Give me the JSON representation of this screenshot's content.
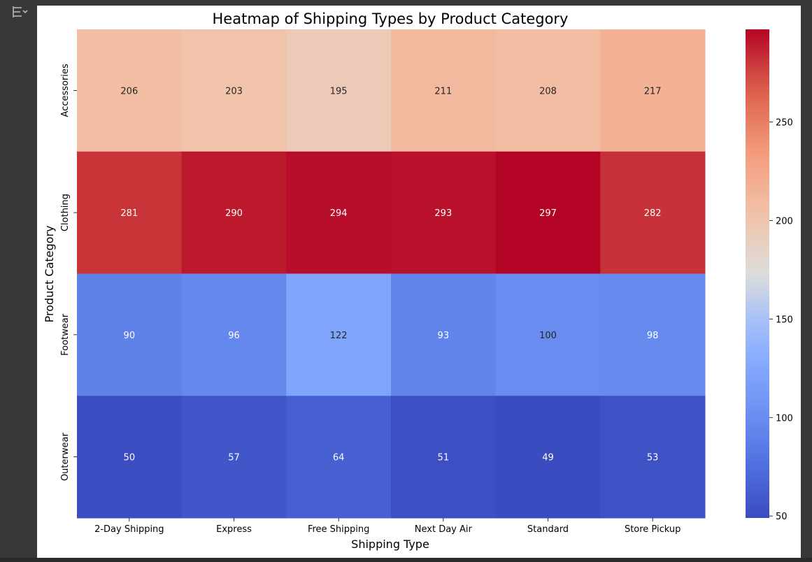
{
  "toolbar": {
    "output_icon": "collapse-output-icon"
  },
  "chart_data": {
    "type": "heatmap",
    "title": "Heatmap of Shipping Types by Product Category",
    "xlabel": "Shipping Type",
    "ylabel": "Product Category",
    "x_categories": [
      "2-Day Shipping",
      "Express",
      "Free Shipping",
      "Next Day Air",
      "Standard",
      "Store Pickup"
    ],
    "y_categories": [
      "Accessories",
      "Clothing",
      "Footwear",
      "Outerwear"
    ],
    "values": [
      [
        206,
        203,
        195,
        211,
        208,
        217
      ],
      [
        281,
        290,
        294,
        293,
        297,
        282
      ],
      [
        90,
        96,
        122,
        93,
        100,
        98
      ],
      [
        50,
        57,
        64,
        51,
        49,
        53
      ]
    ],
    "colormap": "coolwarm",
    "vmin": 49,
    "vmax": 297,
    "colorbar_ticks": [
      50,
      100,
      150,
      200,
      250
    ],
    "annotations": true,
    "grid": false
  }
}
